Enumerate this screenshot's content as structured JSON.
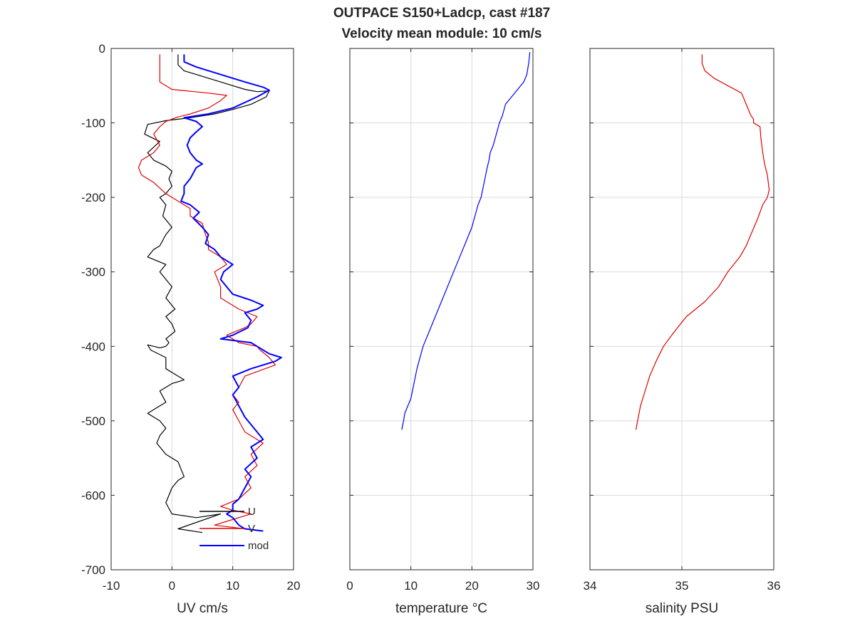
{
  "chart_data": {
    "title": "OUTPACE S150+Ladcp, cast #187",
    "subtitle": "Velocity mean module:  10 cm/s",
    "panels": [
      {
        "type": "line",
        "xlabel": "UV cm/s",
        "xlim": [
          -10,
          20
        ],
        "xticks": [
          -10,
          0,
          10,
          20
        ],
        "ylim": [
          -700,
          0
        ],
        "yticks": [
          0,
          -100,
          -200,
          -300,
          -400,
          -500,
          -600,
          -700
        ],
        "show_ytick_labels": true,
        "grid": "x",
        "legend": {
          "position": "bottom-right",
          "entries": [
            "U",
            "V",
            "mod"
          ]
        },
        "series": [
          {
            "name": "U",
            "color": "#000000",
            "x": [
              1,
              1,
              2,
              4,
              6,
              8,
              10,
              12,
              14,
              16,
              15.5,
              13,
              10,
              7,
              3,
              -1,
              -4,
              -4.5,
              -2,
              -4,
              -3,
              -1,
              0,
              -0.5,
              0,
              -1,
              -2,
              -1,
              -1.5,
              0,
              -1,
              -2,
              -3,
              -4,
              -1,
              -2,
              -1,
              0,
              -1,
              0.5,
              -1,
              0,
              0.5,
              -1,
              -0.5,
              -1,
              -2,
              -4,
              -3.5,
              -1,
              -1,
              1,
              2,
              0,
              -2,
              -1,
              -2,
              -4,
              -2,
              -1,
              -2,
              -2.5,
              -1,
              1,
              1.5,
              2,
              1,
              0,
              -1,
              0,
              4,
              8,
              1,
              5
            ],
            "y": [
              -8,
              -22,
              -30,
              -35,
              -40,
              -45,
              -50,
              -55,
              -58,
              -57,
              -65,
              -75,
              -82,
              -88,
              -93,
              -97,
              -102,
              -115,
              -125,
              -140,
              -150,
              -158,
              -165,
              -175,
              -185,
              -195,
              -200,
              -210,
              -225,
              -240,
              -250,
              -265,
              -270,
              -280,
              -290,
              -300,
              -310,
              -320,
              -335,
              -350,
              -360,
              -370,
              -380,
              -390,
              -395,
              -400,
              -402,
              -398,
              -405,
              -415,
              -430,
              -440,
              -445,
              -450,
              -460,
              -475,
              -480,
              -490,
              -500,
              -510,
              -520,
              -530,
              -545,
              -555,
              -565,
              -575,
              -580,
              -590,
              -610,
              -625,
              -630,
              -625,
              -645,
              -650
            ]
          },
          {
            "name": "V",
            "color": "#e00000",
            "x": [
              -2,
              -2,
              -2,
              0,
              6,
              9,
              8,
              6,
              3,
              1,
              -1,
              -2,
              -3,
              -2,
              -3,
              -5,
              -5.5,
              -5,
              -3,
              -1,
              1,
              3,
              3,
              5,
              5.5,
              6,
              6,
              8,
              9,
              7,
              8,
              8,
              9,
              11,
              14,
              13,
              12,
              9,
              11,
              14,
              14.5,
              16,
              17,
              12,
              11,
              10,
              11,
              10,
              11,
              12,
              14,
              15,
              13,
              14,
              12,
              13,
              11,
              8,
              10,
              13,
              9,
              7,
              15
            ],
            "y": [
              -8,
              -30,
              -45,
              -55,
              -60,
              -63,
              -70,
              -80,
              -88,
              -92,
              -98,
              -105,
              -115,
              -130,
              -140,
              -150,
              -160,
              -170,
              -180,
              -195,
              -205,
              -215,
              -225,
              -235,
              -250,
              -260,
              -270,
              -280,
              -290,
              -300,
              -320,
              -335,
              -340,
              -350,
              -360,
              -370,
              -375,
              -385,
              -395,
              -400,
              -405,
              -415,
              -425,
              -440,
              -455,
              -465,
              -475,
              -485,
              -500,
              -515,
              -525,
              -530,
              -545,
              -560,
              -575,
              -590,
              -605,
              -615,
              -620,
              -625,
              -635,
              -640,
              -648
            ]
          },
          {
            "name": "mod",
            "color": "#0000ff",
            "x": [
              2,
              2,
              4,
              8,
              12,
              15,
              16,
              14,
              10,
              6,
              2,
              4,
              5,
              4,
              3,
              2.5,
              3,
              4,
              5,
              4,
              3,
              2,
              2,
              1.5,
              3,
              4.5,
              3.5,
              5,
              6,
              5.5,
              7,
              8,
              10,
              8.5,
              8,
              9,
              10,
              13,
              15,
              14,
              12,
              13,
              12.5,
              10,
              8,
              13,
              14,
              15,
              16,
              18,
              17,
              13,
              10,
              11,
              10,
              11,
              12,
              13,
              14,
              15,
              13,
              14,
              12,
              13,
              12,
              11,
              10,
              10,
              9,
              10,
              10.5,
              11,
              12,
              15
            ],
            "y": [
              -8,
              -18,
              -25,
              -35,
              -45,
              -52,
              -56,
              -65,
              -80,
              -88,
              -93,
              -98,
              -105,
              -112,
              -120,
              -130,
              -140,
              -150,
              -155,
              -160,
              -175,
              -185,
              -195,
              -205,
              -210,
              -220,
              -228,
              -240,
              -250,
              -262,
              -270,
              -280,
              -290,
              -300,
              -310,
              -320,
              -330,
              -338,
              -345,
              -350,
              -355,
              -365,
              -375,
              -385,
              -390,
              -395,
              -400,
              -405,
              -410,
              -415,
              -420,
              -430,
              -440,
              -455,
              -465,
              -480,
              -495,
              -505,
              -515,
              -525,
              -535,
              -550,
              -565,
              -575,
              -590,
              -605,
              -612,
              -620,
              -625,
              -630,
              -635,
              -640,
              -645,
              -648
            ]
          }
        ]
      },
      {
        "type": "line",
        "xlabel": "temperature °C",
        "xlim": [
          0,
          30
        ],
        "xticks": [
          0,
          10,
          20,
          30
        ],
        "ylim": [
          -700,
          0
        ],
        "yticks": [
          0,
          -100,
          -200,
          -300,
          -400,
          -500,
          -600,
          -700
        ],
        "show_ytick_labels": false,
        "grid": "xy",
        "series": [
          {
            "color": "#0000ff",
            "x": [
              29.5,
              29.3,
              29,
              28.5,
              27.5,
              26.5,
              25.5,
              25,
              24.5,
              24,
              23.5,
              23,
              22.8,
              22.5,
              22,
              21.5,
              21,
              20,
              19,
              18,
              17,
              16,
              15,
              14,
              13,
              12,
              11,
              10,
              9.5,
              9,
              8.8,
              8.5
            ],
            "y": [
              -5,
              -20,
              -35,
              -45,
              -55,
              -65,
              -75,
              -90,
              -100,
              -115,
              -130,
              -140,
              -150,
              -160,
              -180,
              -200,
              -210,
              -240,
              -260,
              -280,
              -300,
              -320,
              -340,
              -360,
              -380,
              -400,
              -430,
              -470,
              -480,
              -490,
              -500,
              -512
            ]
          }
        ]
      },
      {
        "type": "line",
        "xlabel": "salinity PSU",
        "xlim": [
          34,
          36
        ],
        "xticks": [
          34,
          35,
          36
        ],
        "ylim": [
          -700,
          0
        ],
        "yticks": [
          0,
          -100,
          -200,
          -300,
          -400,
          -500,
          -600,
          -700
        ],
        "show_ytick_labels": false,
        "grid": "xy",
        "series": [
          {
            "color": "#e00000",
            "x": [
              35.22,
              35.22,
              35.25,
              35.35,
              35.5,
              35.65,
              35.7,
              35.75,
              35.78,
              35.78,
              35.85,
              35.86,
              35.88,
              35.9,
              35.93,
              35.95,
              35.93,
              35.88,
              35.82,
              35.75,
              35.7,
              35.63,
              35.5,
              35.4,
              35.25,
              35.05,
              34.92,
              34.8,
              34.72,
              34.65,
              34.6,
              34.55,
              34.5
            ],
            "y": [
              -8,
              -20,
              -30,
              -40,
              -50,
              -60,
              -75,
              -90,
              -95,
              -100,
              -105,
              -120,
              -140,
              -155,
              -170,
              -190,
              -200,
              -210,
              -230,
              -250,
              -265,
              -280,
              -300,
              -320,
              -340,
              -360,
              -380,
              -400,
              -420,
              -440,
              -460,
              -480,
              -512
            ]
          }
        ]
      }
    ]
  }
}
